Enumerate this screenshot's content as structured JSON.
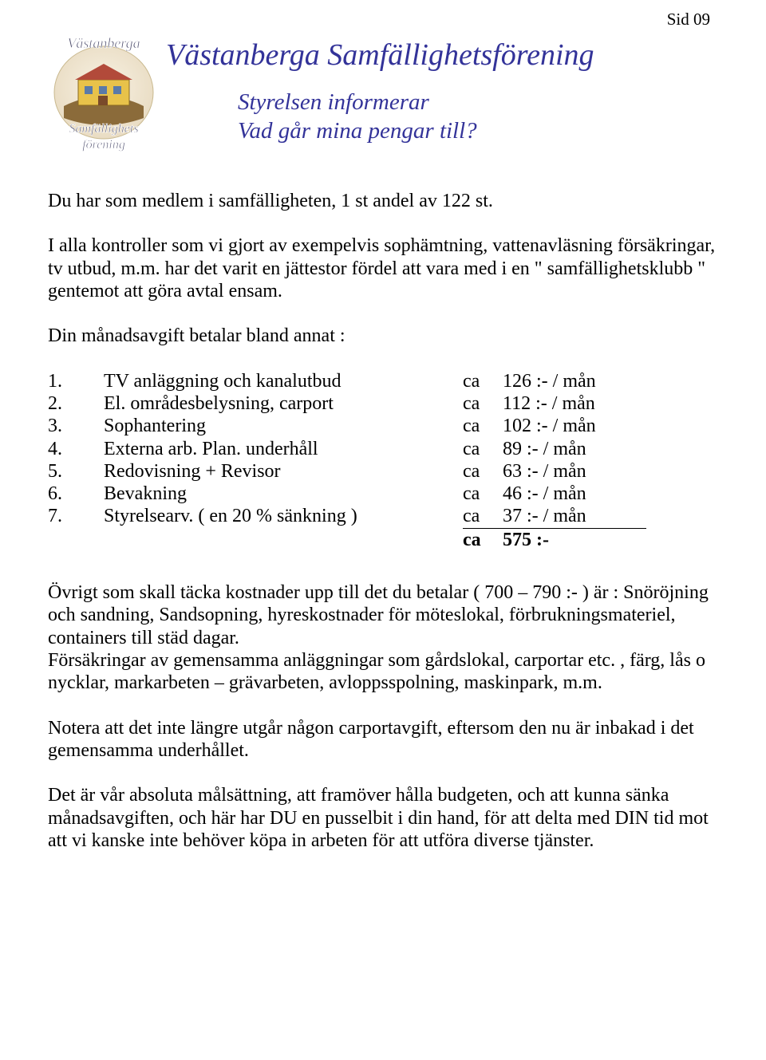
{
  "page_label": "Sid 09",
  "logo": {
    "top_text": "Västanberga",
    "mid_text": "Samfällighets",
    "bot_text": "förening",
    "colors": {
      "sky": "#f6efe2",
      "ground": "#8b6b3a",
      "house": "#e8c24a",
      "roof": "#b24a3a",
      "text": "#4a4a6a"
    }
  },
  "title": "Västanberga Samfällighetsförening",
  "subtitle1": "Styrelsen informerar",
  "subtitle2": "Vad går mina pengar till?",
  "intro_p1": "Du har som medlem i samfälligheten, 1 st andel av 122 st.",
  "intro_p2": "I alla kontroller som vi gjort av exempelvis sophämtning, vattenavläsning försäkringar, tv utbud, m.m. har det varit en jättestor fördel att vara med i en \" samfällighetsklubb \" gentemot att göra avtal ensam.",
  "intro_p3": "Din månadsavgift betalar bland annat :",
  "fees": {
    "ca_label": "ca",
    "rows": [
      {
        "n": "1.",
        "desc": "TV anläggning och kanalutbud",
        "val": "126 :- / mån"
      },
      {
        "n": "2.",
        "desc": "El. områdesbelysning, carport",
        "val": "112 :- / mån"
      },
      {
        "n": "3.",
        "desc": "Sophantering",
        "val": "102 :- / mån"
      },
      {
        "n": "4.",
        "desc": "Externa arb. Plan. underhåll",
        "val": "89 :- / mån"
      },
      {
        "n": "5.",
        "desc": "Redovisning + Revisor",
        "val": "63 :- / mån"
      },
      {
        "n": "6.",
        "desc": "Bevakning",
        "val": "46 :- / mån"
      },
      {
        "n": "7.",
        "desc": "Styrelsearv. ( en 20 % sänkning )",
        "val": "37 :- / mån"
      }
    ],
    "total_val": "575 :-"
  },
  "para1": "Övrigt som skall täcka kostnader upp till det du betalar ( 700 – 790 :- ) är : Snöröjning och sandning, Sandsopning, hyreskostnader för möteslokal, förbrukningsmateriel, containers till städ dagar.",
  "para2": "Försäkringar av gemensamma anläggningar som gårdslokal, carportar etc. , färg, lås o nycklar, markarbeten – grävarbeten, avloppsspolning, maskinpark, m.m.",
  "para3": "Notera att det inte längre utgår någon carportavgift, eftersom den nu är inbakad i det gemensamma underhållet.",
  "para4": "Det är vår absoluta målsättning, att framöver hålla budgeten, och att kunna sänka månadsavgiften, och här har DU en pusselbit i din hand, för att delta med DIN tid mot att vi kanske inte behöver köpa in arbeten för att utföra diverse tjänster.",
  "colors": {
    "title": "#333399",
    "text": "#000000",
    "background": "#ffffff"
  },
  "fonts": {
    "family": "Times New Roman",
    "title_size_pt": 28,
    "subtitle_size_pt": 22,
    "body_size_pt": 18
  }
}
